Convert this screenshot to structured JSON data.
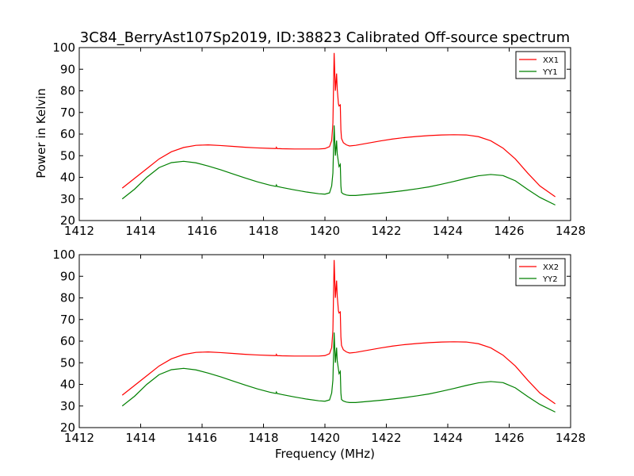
{
  "title": "3C84_BerryAst107Sp2019, ID:38823 Calibrated Off-source spectrum",
  "ylabel": "Power in Kelvin",
  "xlabel": "Frequency (MHz)",
  "chart_data": [
    {
      "type": "line",
      "title": "3C84_BerryAst107Sp2019, ID:38823 Calibrated Off-source spectrum",
      "xlabel": "",
      "ylabel": "Power in Kelvin",
      "xlim": [
        1412,
        1428
      ],
      "ylim": [
        20,
        100
      ],
      "xticks": [
        1412,
        1414,
        1416,
        1418,
        1420,
        1422,
        1424,
        1426,
        1428
      ],
      "yticks": [
        20,
        30,
        40,
        50,
        60,
        70,
        80,
        90,
        100
      ],
      "grid": false,
      "legend": "top-right",
      "series": [
        {
          "name": "XX1",
          "color": "#ff0000",
          "x": [
            1413.4,
            1413.8,
            1414.2,
            1414.6,
            1415.0,
            1415.4,
            1415.8,
            1416.2,
            1416.6,
            1417.0,
            1417.4,
            1417.8,
            1418.2,
            1418.4,
            1418.42,
            1418.44,
            1418.6,
            1419.0,
            1419.4,
            1419.8,
            1420.0,
            1420.15,
            1420.22,
            1420.26,
            1420.3,
            1420.34,
            1420.38,
            1420.4,
            1420.44,
            1420.46,
            1420.5,
            1420.52,
            1420.54,
            1420.6,
            1420.7,
            1420.8,
            1421.0,
            1421.4,
            1421.8,
            1422.2,
            1422.6,
            1423.0,
            1423.4,
            1423.8,
            1424.2,
            1424.6,
            1425.0,
            1425.4,
            1425.8,
            1426.2,
            1426.6,
            1427.0,
            1427.5
          ],
          "y": [
            35,
            39.5,
            44,
            48.5,
            51.8,
            53.8,
            54.8,
            55,
            54.7,
            54.3,
            53.9,
            53.6,
            53.4,
            53.3,
            53.9,
            53.3,
            53.2,
            53.1,
            53.1,
            53.1,
            53.3,
            54.2,
            57,
            65,
            97.5,
            80,
            88,
            81,
            74,
            73,
            73.5,
            62,
            58,
            56,
            55,
            54.5,
            54.8,
            55.8,
            56.8,
            57.7,
            58.4,
            58.9,
            59.3,
            59.6,
            59.7,
            59.6,
            58.8,
            56.9,
            53.5,
            48.5,
            42,
            36,
            31
          ]
        },
        {
          "name": "YY1",
          "color": "#008000",
          "x": [
            1413.4,
            1413.8,
            1414.2,
            1414.6,
            1415.0,
            1415.4,
            1415.8,
            1416.2,
            1416.6,
            1417.0,
            1417.4,
            1417.8,
            1418.2,
            1418.4,
            1418.42,
            1418.44,
            1418.6,
            1419.0,
            1419.4,
            1419.8,
            1420.0,
            1420.15,
            1420.22,
            1420.26,
            1420.3,
            1420.34,
            1420.38,
            1420.4,
            1420.44,
            1420.46,
            1420.5,
            1420.52,
            1420.54,
            1420.6,
            1420.7,
            1420.8,
            1421.0,
            1421.4,
            1421.8,
            1422.2,
            1422.6,
            1423.0,
            1423.4,
            1423.8,
            1424.2,
            1424.6,
            1425.0,
            1425.4,
            1425.8,
            1426.2,
            1426.6,
            1427.0,
            1427.5
          ],
          "y": [
            30,
            34.5,
            40,
            44.5,
            46.8,
            47.4,
            46.7,
            45.2,
            43.5,
            41.6,
            39.7,
            37.9,
            36.4,
            35.8,
            36.5,
            35.8,
            35.3,
            34.2,
            33.2,
            32.4,
            32.2,
            32.8,
            36,
            42,
            64,
            50,
            57,
            51,
            47,
            45,
            46,
            36,
            33,
            32.3,
            31.8,
            31.6,
            31.6,
            32.1,
            32.6,
            33.2,
            33.9,
            34.7,
            35.6,
            36.8,
            38.1,
            39.5,
            40.7,
            41.3,
            40.8,
            38.4,
            34.4,
            30.7,
            27.2
          ]
        }
      ]
    },
    {
      "type": "line",
      "title": "",
      "xlabel": "Frequency (MHz)",
      "ylabel": "",
      "xlim": [
        1412,
        1428
      ],
      "ylim": [
        20,
        100
      ],
      "xticks": [
        1412,
        1414,
        1416,
        1418,
        1420,
        1422,
        1424,
        1426,
        1428
      ],
      "yticks": [
        20,
        30,
        40,
        50,
        60,
        70,
        80,
        90,
        100
      ],
      "grid": false,
      "legend": "top-right",
      "series": [
        {
          "name": "XX2",
          "color": "#ff0000",
          "x": [
            1413.4,
            1413.8,
            1414.2,
            1414.6,
            1415.0,
            1415.4,
            1415.8,
            1416.2,
            1416.6,
            1417.0,
            1417.4,
            1417.8,
            1418.2,
            1418.4,
            1418.42,
            1418.44,
            1418.6,
            1419.0,
            1419.4,
            1419.8,
            1420.0,
            1420.15,
            1420.22,
            1420.26,
            1420.3,
            1420.34,
            1420.38,
            1420.4,
            1420.44,
            1420.46,
            1420.5,
            1420.52,
            1420.54,
            1420.6,
            1420.7,
            1420.8,
            1421.0,
            1421.4,
            1421.8,
            1422.2,
            1422.6,
            1423.0,
            1423.4,
            1423.8,
            1424.2,
            1424.6,
            1425.0,
            1425.4,
            1425.8,
            1426.2,
            1426.6,
            1427.0,
            1427.5
          ],
          "y": [
            35,
            39.5,
            44,
            48.5,
            51.8,
            53.8,
            54.8,
            55,
            54.7,
            54.3,
            53.9,
            53.6,
            53.4,
            53.3,
            53.9,
            53.3,
            53.2,
            53.1,
            53.1,
            53.1,
            53.3,
            54.2,
            57,
            65,
            97.5,
            80,
            88,
            81,
            74,
            73,
            73.5,
            62,
            58,
            56,
            55,
            54.5,
            54.8,
            55.8,
            56.8,
            57.7,
            58.4,
            58.9,
            59.3,
            59.6,
            59.7,
            59.6,
            58.8,
            56.9,
            53.5,
            48.5,
            42,
            36,
            31
          ]
        },
        {
          "name": "YY2",
          "color": "#008000",
          "x": [
            1413.4,
            1413.8,
            1414.2,
            1414.6,
            1415.0,
            1415.4,
            1415.8,
            1416.2,
            1416.6,
            1417.0,
            1417.4,
            1417.8,
            1418.2,
            1418.4,
            1418.42,
            1418.44,
            1418.6,
            1419.0,
            1419.4,
            1419.8,
            1420.0,
            1420.15,
            1420.22,
            1420.26,
            1420.3,
            1420.34,
            1420.38,
            1420.4,
            1420.44,
            1420.46,
            1420.5,
            1420.52,
            1420.54,
            1420.6,
            1420.7,
            1420.8,
            1421.0,
            1421.4,
            1421.8,
            1422.2,
            1422.6,
            1423.0,
            1423.4,
            1423.8,
            1424.2,
            1424.6,
            1425.0,
            1425.4,
            1425.8,
            1426.2,
            1426.6,
            1427.0,
            1427.5
          ],
          "y": [
            30,
            34.5,
            40,
            44.5,
            46.8,
            47.4,
            46.7,
            45.2,
            43.5,
            41.6,
            39.7,
            37.9,
            36.4,
            35.8,
            36.5,
            35.8,
            35.3,
            34.2,
            33.2,
            32.4,
            32.2,
            32.8,
            36,
            42,
            64,
            50,
            57,
            51,
            47,
            45,
            46,
            36,
            33,
            32.3,
            31.8,
            31.6,
            31.6,
            32.1,
            32.6,
            33.2,
            33.9,
            34.7,
            35.6,
            36.8,
            38.1,
            39.5,
            40.7,
            41.3,
            40.8,
            38.4,
            34.4,
            30.7,
            27.2
          ]
        }
      ]
    }
  ]
}
